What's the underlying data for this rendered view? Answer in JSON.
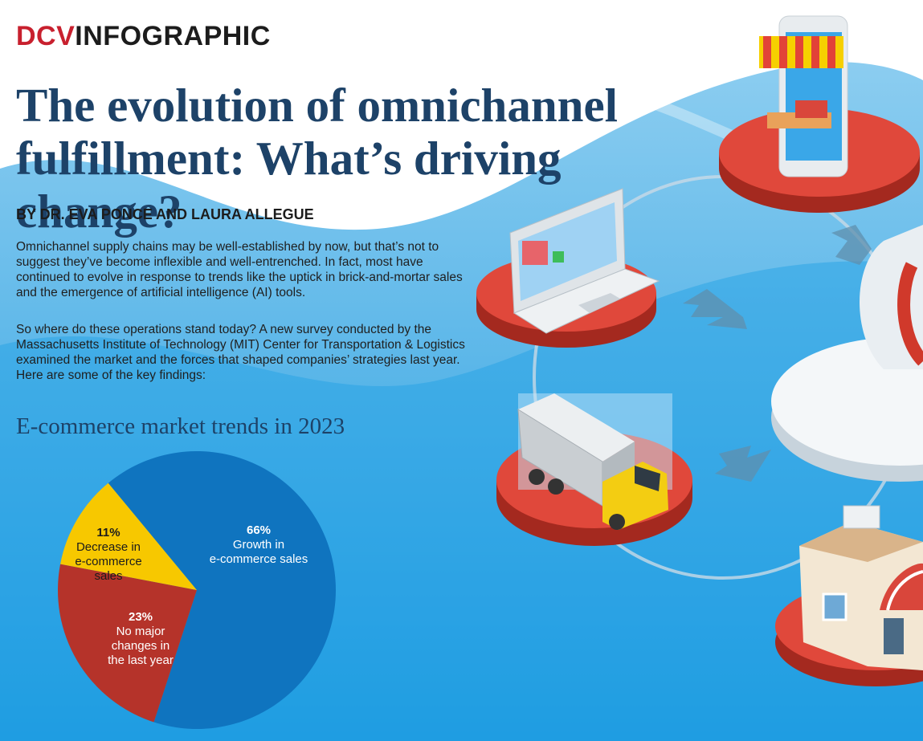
{
  "header": {
    "brand_prefix": "DCV",
    "brand_suffix": "INFOGRAPHIC",
    "title": "The evolution of omnichannel fulfillment: What’s driving change?",
    "byline": "BY DR. EVA PONCE AND LAURA ALLEGUE"
  },
  "body": {
    "paragraph_1": "Omnichannel supply chains may be well-established by now, but that’s not to suggest they’ve become inflexible and well-entrenched. In fact, most have continued to evolve in response to trends like the uptick in brick-and-mortar sales and the emergence of artificial intelligence (AI) tools.",
    "paragraph_2": "So where do these operations stand today? A new survey conducted by the Massachusetts Institute of Technology (MIT) Center for Transportation & Logistics examined the market and the forces that shaped companies’ strategies last year. Here are some of the key findings:"
  },
  "colors": {
    "blue": "#0f74bf",
    "red": "#b5332a",
    "yellow": "#f7c800",
    "title_navy": "#1d4268",
    "brand_red": "#c8202e"
  },
  "chart_data": {
    "type": "pie",
    "title": "E-commerce market trends in 2023",
    "slices": [
      {
        "pct_label": "66%",
        "value": 66,
        "lines": [
          "Growth in",
          "e-commerce sales"
        ],
        "color": "#0f74bf",
        "text_color": "#ffffff"
      },
      {
        "pct_label": "23%",
        "value": 23,
        "lines": [
          "No major",
          "changes in",
          "the last year"
        ],
        "color": "#b5332a",
        "text_color": "#ffffff"
      },
      {
        "pct_label": "11%",
        "value": 11,
        "lines": [
          "Decrease in",
          "e-commerce",
          "sales"
        ],
        "color": "#f7c800",
        "text_color": "#1c1c1c"
      }
    ]
  }
}
